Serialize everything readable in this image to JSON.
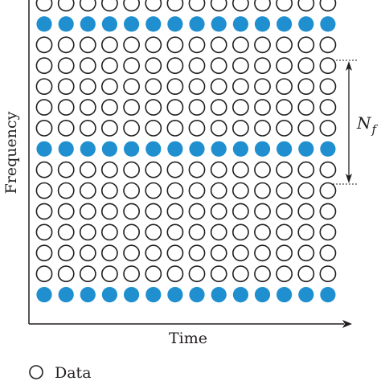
{
  "axes": {
    "x_label": "Time",
    "y_label": "Frequency"
  },
  "annotation": {
    "symbol_main": "N",
    "symbol_sub": "f"
  },
  "legend": {
    "items": [
      {
        "label": "Data",
        "marker": "hollow-circle"
      }
    ]
  },
  "grid": {
    "columns": 14,
    "rows": 15,
    "pilot_rows_from_top": [
      1,
      7,
      14
    ],
    "spacing_rows": 6
  },
  "colors": {
    "pilot_fill": "#1f8fcf",
    "data_stroke": "#231f20",
    "axis": "#231f20"
  }
}
